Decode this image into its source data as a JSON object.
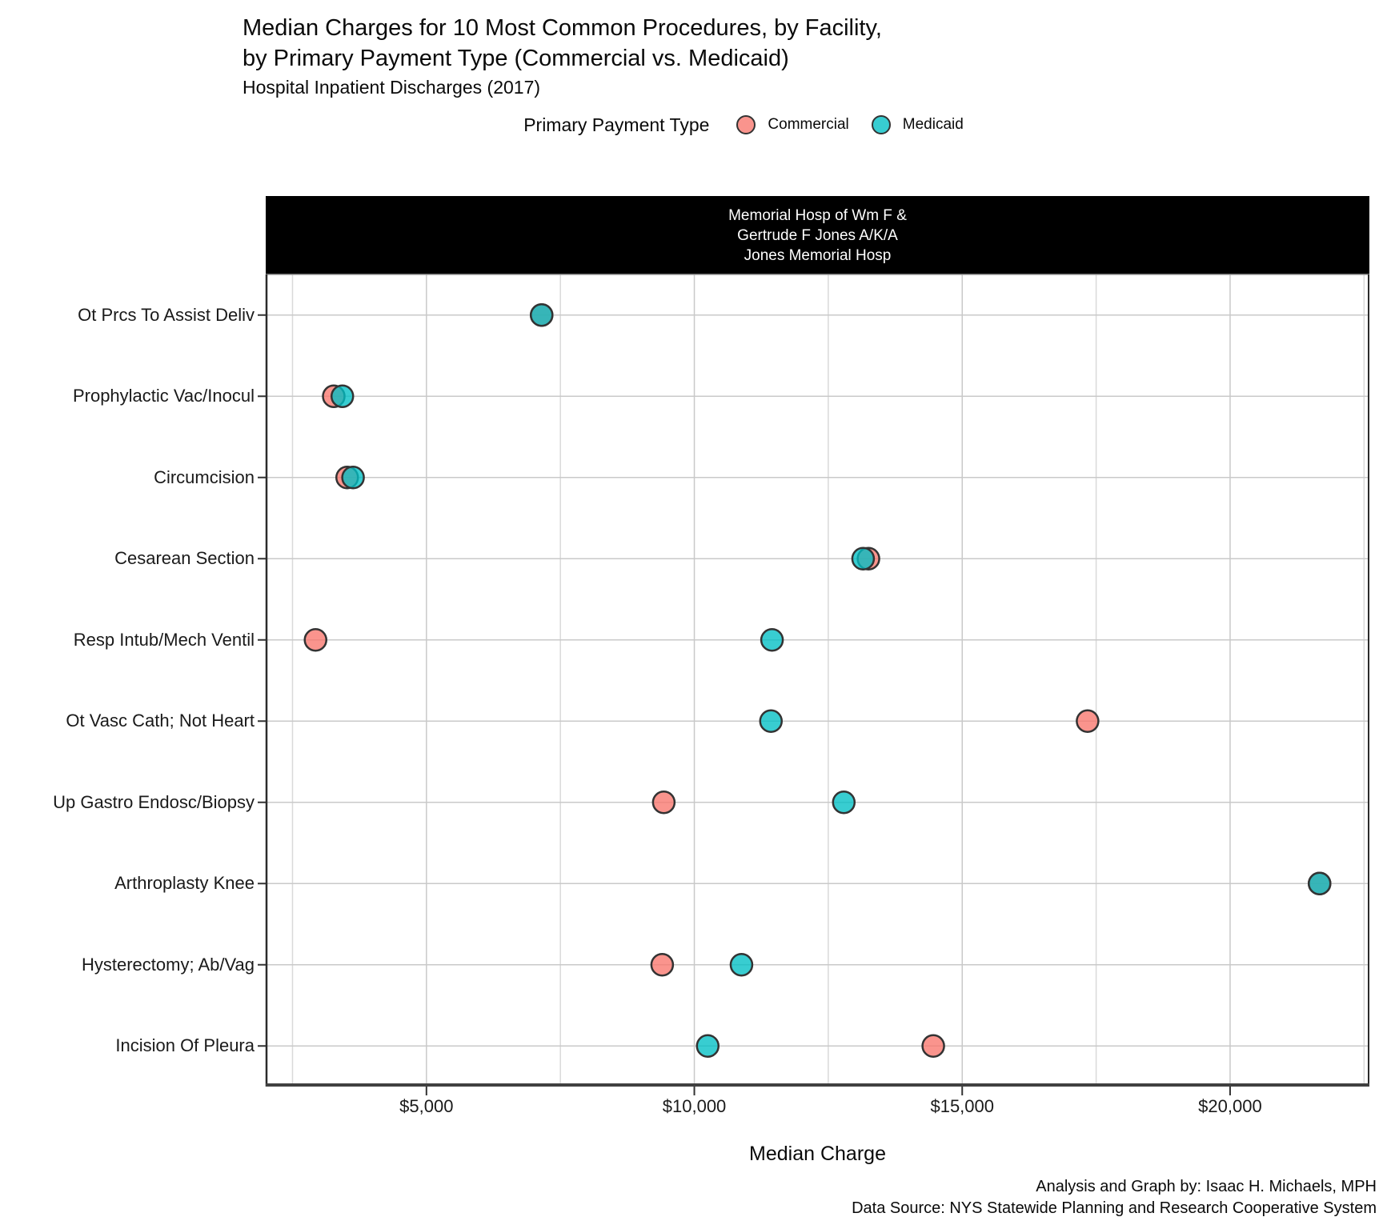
{
  "title": {
    "line1": "Median Charges for 10 Most Common Procedures, by Facility,",
    "line2": "by Primary Payment Type (Commercial vs. Medicaid)",
    "subtitle": "Hospital Inpatient Discharges (2017)"
  },
  "legend": {
    "title": "Primary Payment Type",
    "items": [
      {
        "label": "Commercial",
        "color": "#F8766D"
      },
      {
        "label": "Medicaid",
        "color": "#00BFC4"
      }
    ]
  },
  "facet": {
    "strip_lines": [
      "Memorial Hosp of Wm F &",
      "Gertrude F Jones A/K/A",
      "Jones Memorial Hosp"
    ],
    "strip_bg": "#000000",
    "strip_text_color": "#ffffff"
  },
  "chart_data": {
    "type": "scatter",
    "subtype": "horizontal-dot-plot",
    "title": "Median Charges for 10 Most Common Procedures, by Facility, by Primary Payment Type (Commercial vs. Medicaid)",
    "subtitle": "Hospital Inpatient Discharges (2017)",
    "facet_label": "Memorial Hosp of Wm F & Gertrude F Jones A/K/A Jones Memorial Hosp",
    "xlabel": "Median Charge",
    "ylabel": "",
    "categories": [
      "Ot Prcs To Assist Deliv",
      "Prophylactic Vac/Inocul",
      "Circumcision",
      "Cesarean Section",
      "Resp Intub/Mech Ventil",
      "Ot Vasc Cath; Not Heart",
      "Up Gastro Endosc/Biopsy",
      "Arthroplasty Knee",
      "Hysterectomy; Ab/Vag",
      "Incision Of Pleura"
    ],
    "series": [
      {
        "name": "Commercial",
        "color": "#F8766D",
        "values": [
          7150,
          3270,
          3520,
          13250,
          2930,
          17340,
          9430,
          21670,
          9400,
          14460
        ]
      },
      {
        "name": "Medicaid",
        "color": "#00BFC4",
        "values": [
          7150,
          3430,
          3630,
          13150,
          11450,
          11430,
          12790,
          21670,
          10880,
          10250
        ]
      }
    ],
    "xlim": [
      2000,
      22600
    ],
    "x_major_ticks": [
      5000,
      10000,
      15000,
      20000
    ],
    "x_major_tick_labels": [
      "$5,000",
      "$10,000",
      "$15,000",
      "$20,000"
    ],
    "x_minor_ticks": [
      2500,
      7500,
      12500,
      17500,
      22500
    ],
    "grid": true,
    "legend_position": "top",
    "point_fill_opacity": 0.78,
    "point_stroke": "#333333",
    "grid_major_color": "#c9c9c9",
    "grid_minor_color": "#d9d9d9"
  },
  "caption": {
    "line1": "Analysis and Graph by: Isaac H. Michaels, MPH",
    "line2": "Data Source: NYS Statewide Planning and Research Cooperative System"
  }
}
